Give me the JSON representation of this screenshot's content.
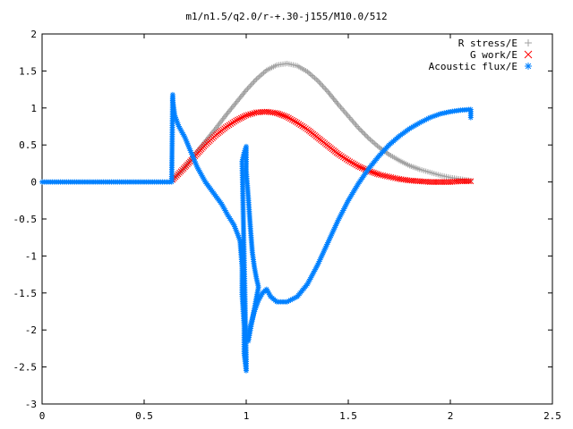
{
  "chart_data": {
    "type": "scatter",
    "title": "m1/n1.5/q2.0/r-+.30-j155/M10.0/512",
    "xlabel": "",
    "ylabel": "",
    "xlim": [
      0,
      2.5
    ],
    "ylim": [
      -3,
      2
    ],
    "x_ticks": [
      0,
      0.5,
      1,
      1.5,
      2,
      2.5
    ],
    "x_tick_labels": [
      "0",
      "0.5",
      "1",
      "1.5",
      "2",
      "2.5"
    ],
    "y_ticks": [
      -3,
      -2.5,
      -2,
      -1.5,
      -1,
      -0.5,
      0,
      0.5,
      1,
      1.5,
      2
    ],
    "y_tick_labels": [
      "-3",
      "-2.5",
      "-2",
      "-1.5",
      "-1",
      "-0.5",
      "0",
      "0.5",
      "1",
      "1.5",
      "2"
    ],
    "grid": false,
    "legend_position": "top-right",
    "series": [
      {
        "name": "R stress/E",
        "marker": "plus",
        "color": "#a0a0a0",
        "points": [
          [
            0.64,
            0.03
          ],
          [
            0.7,
            0.2
          ],
          [
            0.75,
            0.38
          ],
          [
            0.8,
            0.55
          ],
          [
            0.85,
            0.72
          ],
          [
            0.9,
            0.9
          ],
          [
            0.95,
            1.07
          ],
          [
            1.0,
            1.24
          ],
          [
            1.05,
            1.39
          ],
          [
            1.1,
            1.51
          ],
          [
            1.15,
            1.58
          ],
          [
            1.2,
            1.6
          ],
          [
            1.25,
            1.57
          ],
          [
            1.3,
            1.49
          ],
          [
            1.35,
            1.37
          ],
          [
            1.4,
            1.22
          ],
          [
            1.45,
            1.05
          ],
          [
            1.5,
            0.89
          ],
          [
            1.55,
            0.73
          ],
          [
            1.6,
            0.59
          ],
          [
            1.65,
            0.47
          ],
          [
            1.7,
            0.37
          ],
          [
            1.75,
            0.29
          ],
          [
            1.8,
            0.22
          ],
          [
            1.85,
            0.17
          ],
          [
            1.9,
            0.13
          ],
          [
            1.95,
            0.09
          ],
          [
            2.0,
            0.06
          ],
          [
            2.05,
            0.04
          ],
          [
            2.1,
            0.02
          ]
        ]
      },
      {
        "name": "G work/E",
        "marker": "cross",
        "color": "#ff0000",
        "points": [
          [
            0.64,
            0.03
          ],
          [
            0.7,
            0.2
          ],
          [
            0.75,
            0.35
          ],
          [
            0.8,
            0.5
          ],
          [
            0.85,
            0.63
          ],
          [
            0.9,
            0.74
          ],
          [
            0.95,
            0.83
          ],
          [
            1.0,
            0.9
          ],
          [
            1.05,
            0.94
          ],
          [
            1.1,
            0.95
          ],
          [
            1.15,
            0.93
          ],
          [
            1.2,
            0.88
          ],
          [
            1.25,
            0.8
          ],
          [
            1.3,
            0.71
          ],
          [
            1.35,
            0.6
          ],
          [
            1.4,
            0.49
          ],
          [
            1.45,
            0.38
          ],
          [
            1.5,
            0.29
          ],
          [
            1.55,
            0.21
          ],
          [
            1.6,
            0.15
          ],
          [
            1.65,
            0.1
          ],
          [
            1.7,
            0.07
          ],
          [
            1.75,
            0.04
          ],
          [
            1.8,
            0.02
          ],
          [
            1.85,
            0.01
          ],
          [
            1.9,
            0.0
          ],
          [
            1.95,
            0.0
          ],
          [
            2.0,
            0.0
          ],
          [
            2.05,
            0.01
          ],
          [
            2.1,
            0.01
          ]
        ]
      },
      {
        "name": "Acoustic flux/E",
        "marker": "star",
        "color": "#0080ff",
        "points": [
          [
            0.0,
            0.0
          ],
          [
            0.05,
            0.0
          ],
          [
            0.1,
            0.0
          ],
          [
            0.15,
            0.0
          ],
          [
            0.2,
            0.0
          ],
          [
            0.25,
            0.0
          ],
          [
            0.3,
            0.0
          ],
          [
            0.35,
            0.0
          ],
          [
            0.4,
            0.0
          ],
          [
            0.45,
            0.0
          ],
          [
            0.5,
            0.0
          ],
          [
            0.55,
            0.0
          ],
          [
            0.6,
            0.0
          ],
          [
            0.635,
            0.0
          ],
          [
            0.64,
            1.18
          ],
          [
            0.64,
            1.1
          ],
          [
            0.65,
            0.9
          ],
          [
            0.67,
            0.75
          ],
          [
            0.7,
            0.6
          ],
          [
            0.73,
            0.4
          ],
          [
            0.76,
            0.2
          ],
          [
            0.8,
            0.0
          ],
          [
            0.84,
            -0.15
          ],
          [
            0.88,
            -0.3
          ],
          [
            0.91,
            -0.45
          ],
          [
            0.94,
            -0.58
          ],
          [
            0.96,
            -0.72
          ],
          [
            0.97,
            -0.8
          ],
          [
            0.98,
            -1.15
          ],
          [
            0.98,
            -1.52
          ],
          [
            0.99,
            -1.95
          ],
          [
            0.99,
            -2.32
          ],
          [
            1.0,
            -2.55
          ],
          [
            1.0,
            -2.4
          ],
          [
            0.98,
            0.28
          ],
          [
            0.99,
            0.4
          ],
          [
            1.0,
            0.48
          ],
          [
            1.0,
            0.15
          ],
          [
            1.01,
            -0.2
          ],
          [
            1.02,
            -0.6
          ],
          [
            1.03,
            -0.95
          ],
          [
            1.04,
            -1.15
          ],
          [
            1.05,
            -1.3
          ],
          [
            1.06,
            -1.42
          ],
          [
            1.01,
            -2.15
          ],
          [
            1.02,
            -1.95
          ],
          [
            1.04,
            -1.75
          ],
          [
            1.06,
            -1.6
          ],
          [
            1.08,
            -1.5
          ],
          [
            1.1,
            -1.45
          ],
          [
            1.12,
            -1.55
          ],
          [
            1.15,
            -1.62
          ],
          [
            1.2,
            -1.62
          ],
          [
            1.25,
            -1.55
          ],
          [
            1.3,
            -1.38
          ],
          [
            1.35,
            -1.12
          ],
          [
            1.4,
            -0.82
          ],
          [
            1.45,
            -0.52
          ],
          [
            1.5,
            -0.25
          ],
          [
            1.55,
            -0.02
          ],
          [
            1.6,
            0.18
          ],
          [
            1.65,
            0.35
          ],
          [
            1.7,
            0.5
          ],
          [
            1.75,
            0.62
          ],
          [
            1.8,
            0.72
          ],
          [
            1.85,
            0.8
          ],
          [
            1.9,
            0.87
          ],
          [
            1.95,
            0.92
          ],
          [
            2.0,
            0.95
          ],
          [
            2.05,
            0.97
          ],
          [
            2.1,
            0.98
          ],
          [
            2.1,
            0.87
          ]
        ]
      }
    ]
  }
}
